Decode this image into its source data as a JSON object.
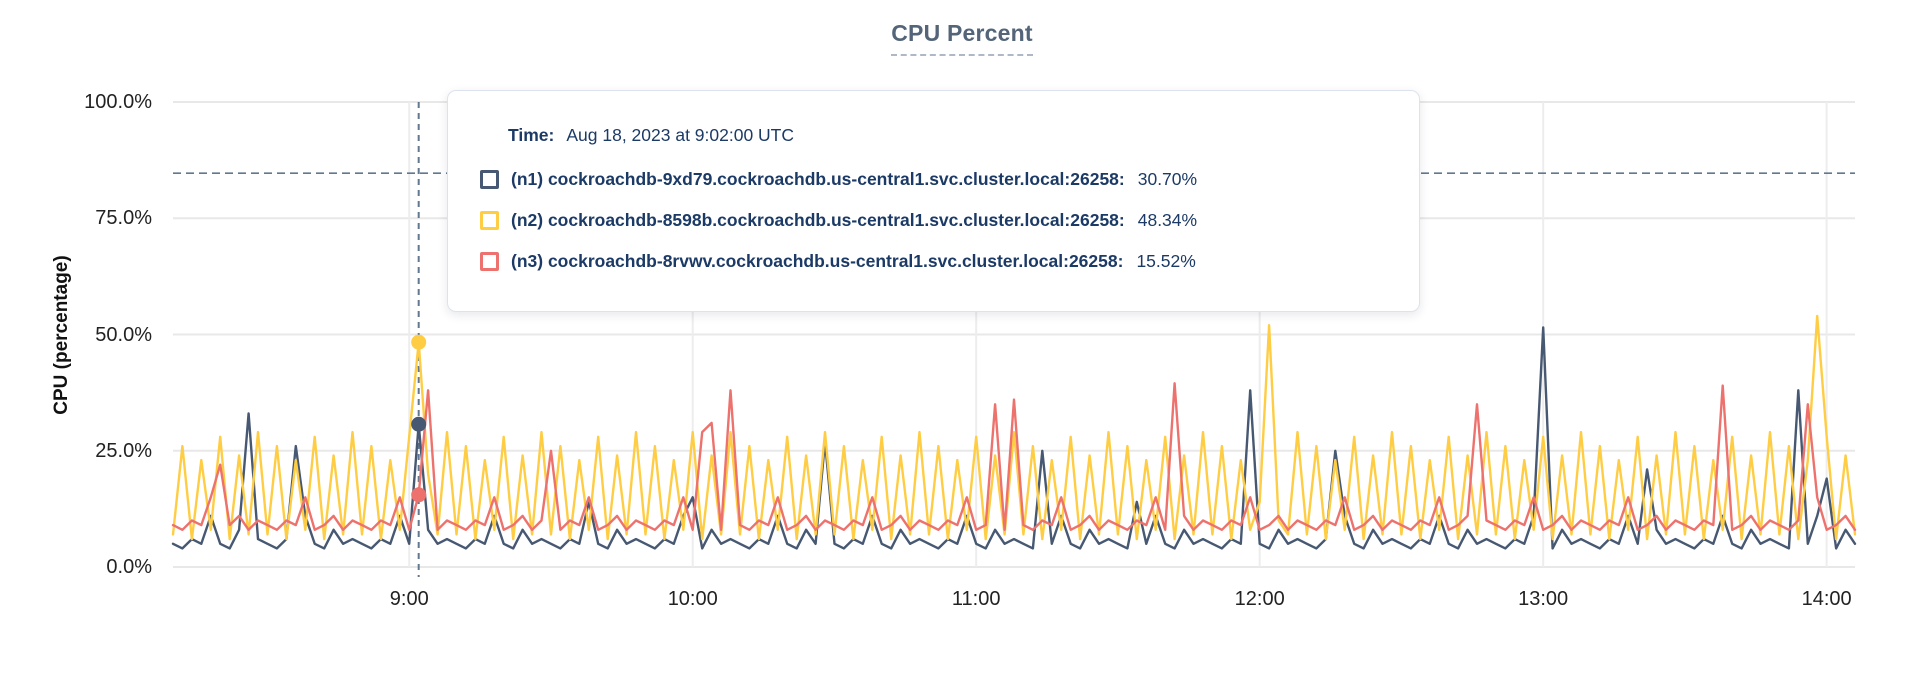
{
  "title": "CPU Percent",
  "y_axis": {
    "title": "CPU (percentage)"
  },
  "tooltip": {
    "time_label": "Time:",
    "time_value": "Aug 18, 2023 at 9:02:00 UTC",
    "rows": [
      {
        "node": "n1",
        "label": "(n1) cockroachdb-9xd79.cockroachdb.us-central1.svc.cluster.local:26258:",
        "value": "30.70%",
        "color": "#475872"
      },
      {
        "node": "n2",
        "label": "(n2) cockroachdb-8598b.cockroachdb.us-central1.svc.cluster.local:26258:",
        "value": "48.34%",
        "color": "#ffcd44"
      },
      {
        "node": "n3",
        "label": "(n3) cockroachdb-8rvwv.cockroachdb.us-central1.svc.cluster.local:26258:",
        "value": "15.52%",
        "color": "#ed726d"
      }
    ]
  },
  "colors": {
    "n1": "#475872",
    "n2": "#ffcd44",
    "n3": "#ed726d",
    "grid_h": "#e8e8e8",
    "grid_v": "#ededed",
    "guide": "#61788e",
    "text_navy": "#1c3a66"
  },
  "chart_data": {
    "type": "line",
    "title": "CPU Percent",
    "xlabel": "",
    "ylabel": "CPU (percentage)",
    "ylim": [
      0,
      100
    ],
    "grid": true,
    "legend_position": "tooltip-overlay",
    "y_ticks": [
      0,
      25,
      50,
      75,
      100
    ],
    "y_tick_labels": [
      "0.0%",
      "25.0%",
      "50.0%",
      "75.0%",
      "100.0%"
    ],
    "x_domain_minutes": [
      490,
      846
    ],
    "x_start_minutes": 490,
    "x_step_minutes": 2,
    "x_tick_minutes": [
      540,
      600,
      660,
      720,
      780,
      840
    ],
    "x_tick_labels": [
      "9:00",
      "10:00",
      "11:00",
      "12:00",
      "13:00",
      "14:00"
    ],
    "threshold_percent": 84.7,
    "hover": {
      "time_minutes": 542,
      "time_label": "Aug 18, 2023 at 9:02:00 UTC",
      "values": {
        "n1": 30.7,
        "n2": 48.34,
        "n3": 15.52
      }
    },
    "series": [
      {
        "name": "(n1) cockroachdb-9xd79.cockroachdb.us-central1.svc.cluster.local:26258",
        "short": "n1",
        "color": "#475872",
        "values": [
          5,
          4,
          6,
          5,
          11,
          5,
          4,
          8,
          33,
          6,
          5,
          4,
          6,
          26,
          11,
          5,
          4,
          8,
          5,
          6,
          5,
          4,
          6,
          5,
          11,
          5,
          30.7,
          8,
          5,
          6,
          5,
          4,
          6,
          5,
          11,
          5,
          4,
          8,
          5,
          6,
          5,
          4,
          6,
          5,
          14,
          5,
          4,
          8,
          5,
          6,
          5,
          4,
          6,
          5,
          11,
          15,
          4,
          8,
          5,
          6,
          5,
          4,
          6,
          5,
          11,
          5,
          4,
          8,
          5,
          27,
          5,
          4,
          6,
          5,
          11,
          5,
          4,
          8,
          5,
          6,
          5,
          4,
          6,
          5,
          11,
          5,
          4,
          8,
          5,
          6,
          5,
          4,
          25,
          5,
          11,
          5,
          4,
          8,
          5,
          6,
          5,
          4,
          14,
          5,
          11,
          5,
          4,
          8,
          5,
          6,
          5,
          4,
          6,
          5,
          38,
          5,
          4,
          8,
          5,
          6,
          5,
          4,
          6,
          25,
          11,
          5,
          4,
          8,
          5,
          6,
          5,
          4,
          6,
          5,
          11,
          5,
          4,
          8,
          5,
          6,
          5,
          4,
          6,
          5,
          11,
          51.5,
          4,
          8,
          5,
          6,
          5,
          4,
          6,
          5,
          11,
          5,
          21,
          8,
          5,
          6,
          5,
          4,
          6,
          5,
          11,
          5,
          4,
          8,
          5,
          6,
          5,
          4,
          38,
          5,
          11,
          19,
          4,
          8,
          5
        ]
      },
      {
        "name": "(n2) cockroachdb-8598b.cockroachdb.us-central1.svc.cluster.local:26258",
        "short": "n2",
        "color": "#ffcd44",
        "values": [
          7,
          26,
          6,
          23,
          8,
          28,
          6,
          24,
          7,
          29,
          7,
          26,
          6,
          23,
          8,
          28,
          6,
          24,
          7,
          29,
          7,
          26,
          6,
          23,
          8,
          28,
          48.34,
          20,
          7,
          29,
          7,
          26,
          6,
          23,
          8,
          28,
          6,
          24,
          7,
          29,
          7,
          26,
          6,
          23,
          8,
          28,
          6,
          24,
          7,
          29,
          7,
          26,
          6,
          23,
          8,
          29,
          6,
          24,
          7,
          29,
          7,
          26,
          6,
          23,
          8,
          28,
          6,
          24,
          7,
          29,
          7,
          26,
          6,
          23,
          8,
          28,
          6,
          24,
          7,
          29,
          7,
          26,
          6,
          23,
          8,
          28,
          6,
          24,
          7,
          29,
          7,
          26,
          6,
          23,
          8,
          28,
          6,
          24,
          7,
          29,
          7,
          26,
          6,
          23,
          8,
          28,
          6,
          24,
          7,
          29,
          7,
          26,
          6,
          23,
          8,
          14,
          52,
          10,
          7,
          29,
          7,
          26,
          6,
          23,
          8,
          28,
          6,
          24,
          7,
          29,
          7,
          26,
          6,
          23,
          8,
          28,
          6,
          24,
          7,
          29,
          7,
          26,
          6,
          23,
          8,
          28,
          6,
          24,
          7,
          29,
          7,
          26,
          6,
          23,
          8,
          28,
          6,
          24,
          7,
          29,
          7,
          26,
          6,
          23,
          8,
          28,
          6,
          24,
          7,
          29,
          7,
          26,
          6,
          23,
          54,
          28,
          6,
          24,
          7
        ]
      },
      {
        "name": "(n3) cockroachdb-8rvwv.cockroachdb.us-central1.svc.cluster.local:26258",
        "short": "n3",
        "color": "#ed726d",
        "values": [
          9,
          8,
          10,
          9,
          15,
          22,
          9,
          11,
          8,
          10,
          9,
          8,
          10,
          9,
          15,
          8,
          9,
          11,
          8,
          10,
          9,
          8,
          10,
          9,
          15,
          8,
          15.52,
          38,
          8,
          10,
          9,
          8,
          10,
          9,
          15,
          8,
          9,
          11,
          8,
          10,
          25,
          8,
          10,
          9,
          15,
          8,
          9,
          11,
          8,
          10,
          9,
          8,
          10,
          9,
          15,
          8,
          29,
          31,
          8,
          38,
          9,
          8,
          10,
          9,
          15,
          8,
          9,
          11,
          8,
          10,
          9,
          8,
          10,
          9,
          15,
          8,
          9,
          11,
          8,
          10,
          9,
          8,
          10,
          9,
          15,
          8,
          9,
          35,
          8,
          36,
          9,
          8,
          10,
          9,
          15,
          8,
          9,
          11,
          8,
          10,
          9,
          8,
          10,
          9,
          15,
          8,
          39.5,
          11,
          8,
          10,
          9,
          8,
          10,
          9,
          15,
          8,
          9,
          11,
          8,
          10,
          9,
          8,
          10,
          9,
          15,
          8,
          9,
          11,
          8,
          10,
          9,
          8,
          10,
          9,
          15,
          8,
          9,
          11,
          35,
          10,
          9,
          8,
          10,
          9,
          15,
          8,
          9,
          11,
          8,
          10,
          9,
          8,
          10,
          9,
          15,
          8,
          9,
          11,
          8,
          10,
          9,
          8,
          10,
          9,
          39,
          8,
          9,
          11,
          8,
          10,
          9,
          8,
          10,
          35,
          15,
          8,
          9,
          11,
          8
        ]
      }
    ]
  }
}
